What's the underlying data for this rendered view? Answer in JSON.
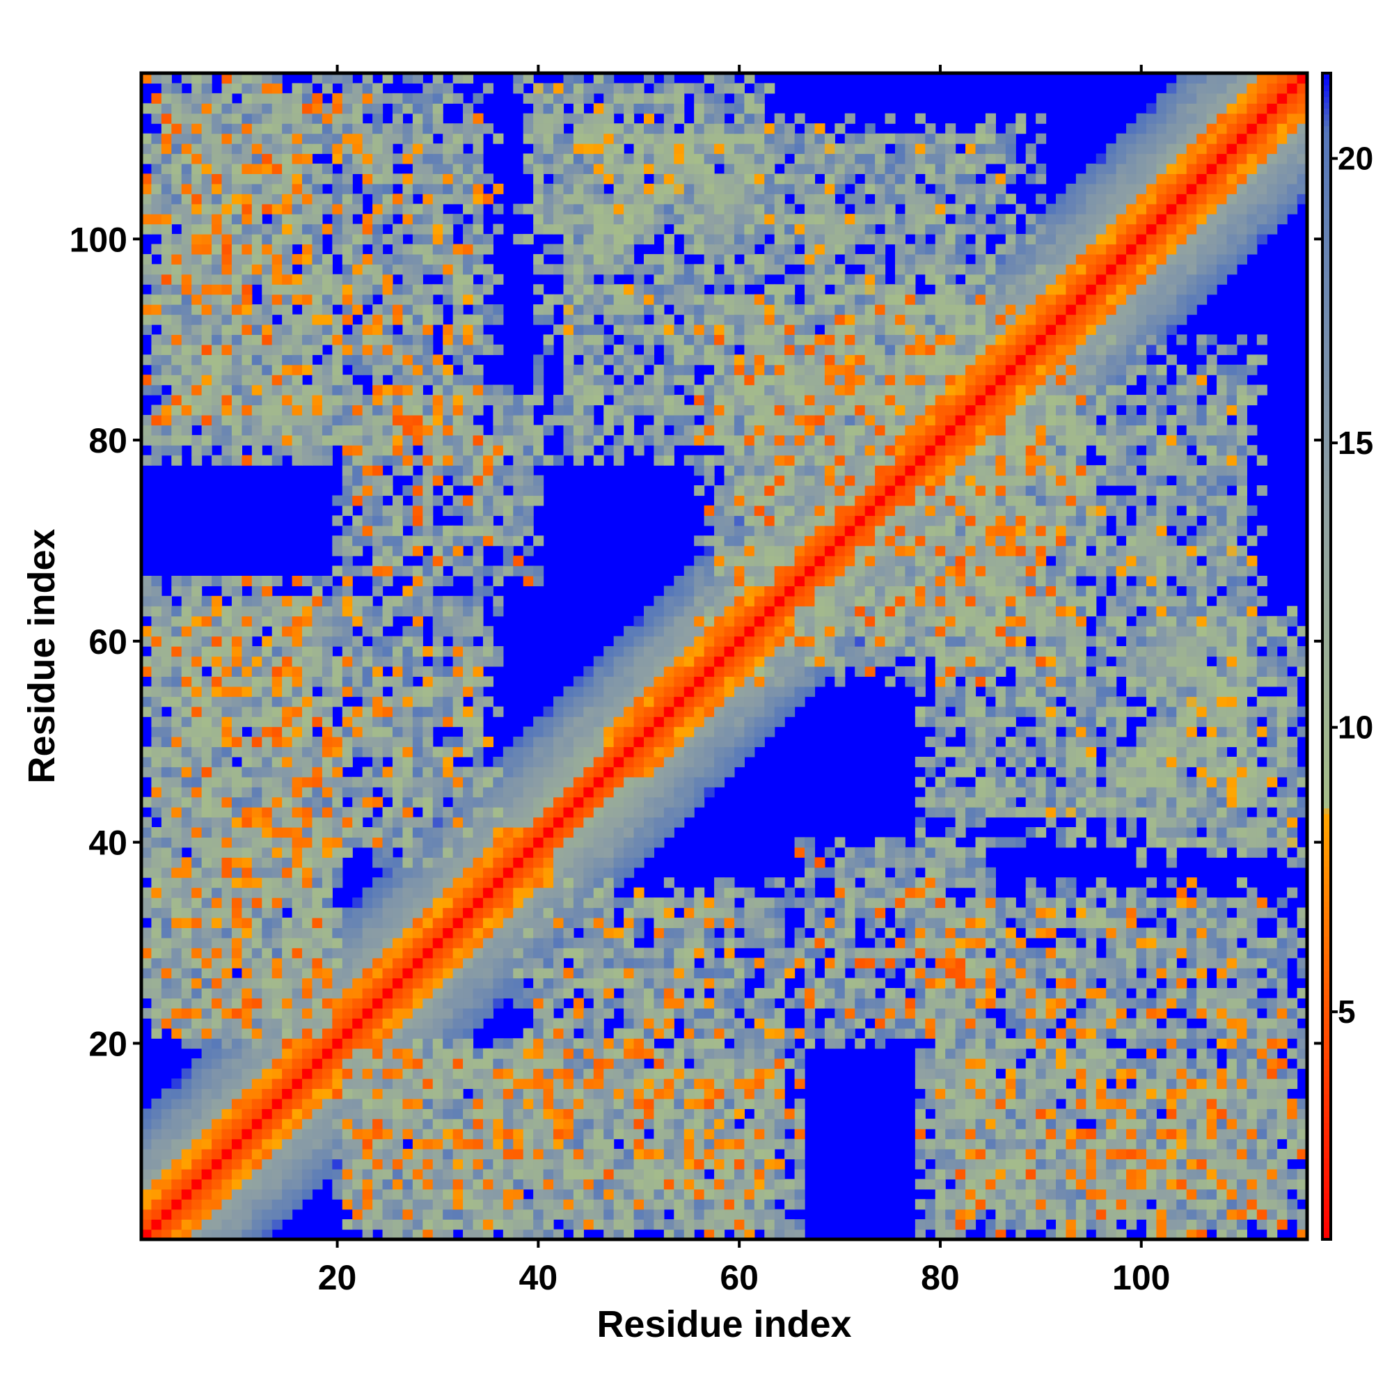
{
  "chart_data": {
    "type": "heatmap",
    "title": "",
    "xlabel": "Residue index",
    "ylabel": "Residue index",
    "n_residues": 116,
    "xlim": [
      1,
      116
    ],
    "ylim": [
      1,
      116
    ],
    "x_ticks": [
      20,
      40,
      60,
      80,
      100
    ],
    "x_tick_labels": [
      "20",
      "40",
      "60",
      "80",
      "100"
    ],
    "y_ticks": [
      20,
      40,
      60,
      80,
      100
    ],
    "y_tick_labels": [
      "20",
      "40",
      "60",
      "80",
      "100"
    ],
    "colorbar": {
      "range": [
        1,
        21.5
      ],
      "ticks": [
        5,
        10,
        15,
        20
      ],
      "tick_labels": [
        "5",
        "10",
        "15",
        "20"
      ],
      "colors": [
        {
          "value": 1,
          "color": "#ff0000"
        },
        {
          "value": 5,
          "color": "#ff5500"
        },
        {
          "value": 8.5,
          "color": "#ffa500"
        },
        {
          "value": 8.6,
          "color": "#a6bd8a"
        },
        {
          "value": 14,
          "color": "#8fa0a3"
        },
        {
          "value": 20.5,
          "color": "#5577bb"
        },
        {
          "value": 21.5,
          "color": "#0000ff"
        }
      ]
    },
    "cell_colors": {
      "contact": "#ff0000",
      "close": "#ffa500",
      "near": "#a6bd8a",
      "medium": "#8fa0a3",
      "far": "#5577bb",
      "none": "#0000ff"
    },
    "matrix_description_values": {
      "symmetric": true,
      "diagonal_distance": 1,
      "helix_segments": [
        [
          1,
          20
        ],
        [
          20,
          41
        ],
        [
          47,
          65
        ],
        [
          76,
          116
        ]
      ],
      "interface_blocks": [
        {
          "rows": [
            1,
            20
          ],
          "cols": [
            20,
            66
          ],
          "min_distance": 5
        },
        {
          "rows": [
            1,
            19
          ],
          "cols": [
            78,
            116
          ],
          "min_distance": 5
        },
        {
          "rows": [
            20,
            40
          ],
          "cols": [
            66,
            85
          ],
          "min_distance": 5
        },
        {
          "rows": [
            20,
            40
          ],
          "cols": [
            1,
            20
          ],
          "min_distance": 6
        },
        {
          "rows": [
            38,
            66
          ],
          "cols": [
            1,
            36
          ],
          "min_distance": 6
        },
        {
          "rows": [
            78,
            116
          ],
          "cols": [
            1,
            36
          ],
          "min_distance": 6
        },
        {
          "rows": [
            78,
            112
          ],
          "cols": [
            40,
            90
          ],
          "min_distance": 8
        },
        {
          "rows": [
            38,
            64
          ],
          "cols": [
            100,
            116
          ],
          "min_distance": 8
        },
        {
          "rows": [
            56,
            88
          ],
          "cols": [
            60,
            95
          ],
          "min_distance": 5
        }
      ]
    }
  }
}
